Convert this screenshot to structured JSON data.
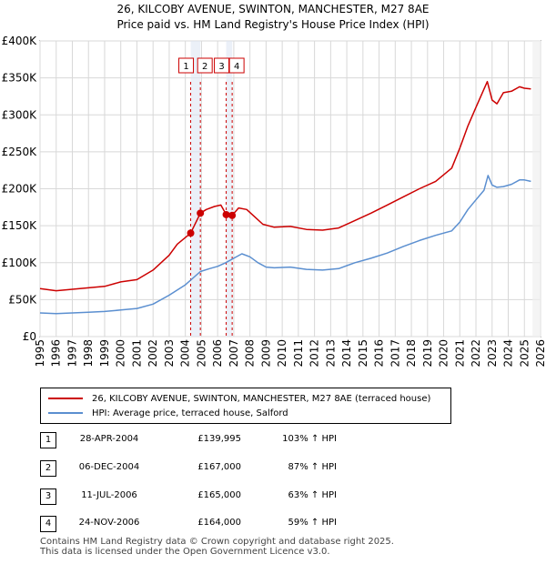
{
  "title_line1": "26, KILCOBY AVENUE, SWINTON, MANCHESTER, M27 8AE",
  "title_line2": "Price paid vs. HM Land Registry's House Price Index (HPI)",
  "chart_data": {
    "type": "line",
    "ylim": [
      0,
      400000
    ],
    "xlim": [
      1995,
      2026
    ],
    "y_ticks": [
      {
        "value": 0,
        "label": "£0"
      },
      {
        "value": 50000,
        "label": "£50K"
      },
      {
        "value": 100000,
        "label": "£100K"
      },
      {
        "value": 150000,
        "label": "£150K"
      },
      {
        "value": 200000,
        "label": "£200K"
      },
      {
        "value": 250000,
        "label": "£250K"
      },
      {
        "value": 300000,
        "label": "£300K"
      },
      {
        "value": 350000,
        "label": "£350K"
      },
      {
        "value": 400000,
        "label": "£400K"
      }
    ],
    "x_ticks": [
      "1995",
      "1996",
      "1997",
      "1998",
      "1999",
      "2000",
      "2001",
      "2002",
      "2003",
      "2004",
      "2005",
      "2006",
      "2007",
      "2008",
      "2009",
      "2010",
      "2011",
      "2012",
      "2013",
      "2014",
      "2015",
      "2016",
      "2017",
      "2018",
      "2019",
      "2020",
      "2021",
      "2022",
      "2023",
      "2024",
      "2025",
      "2026"
    ],
    "series": [
      {
        "name": "26, KILCOBY AVENUE, SWINTON, MANCHESTER, M27 8AE (terraced house)",
        "color": "#cc0000",
        "points": [
          [
            1995.0,
            65000
          ],
          [
            1996.0,
            62000
          ],
          [
            1997.0,
            64000
          ],
          [
            1998.0,
            66000
          ],
          [
            1999.0,
            68000
          ],
          [
            2000.0,
            74000
          ],
          [
            2001.0,
            77000
          ],
          [
            2002.0,
            90000
          ],
          [
            2003.0,
            110000
          ],
          [
            2003.5,
            125000
          ],
          [
            2004.33,
            139995
          ],
          [
            2004.93,
            167000
          ],
          [
            2005.3,
            172000
          ],
          [
            2005.8,
            176000
          ],
          [
            2006.2,
            178000
          ],
          [
            2006.53,
            165000
          ],
          [
            2006.9,
            164000
          ],
          [
            2007.3,
            174000
          ],
          [
            2007.8,
            172000
          ],
          [
            2008.3,
            162000
          ],
          [
            2008.8,
            152000
          ],
          [
            2009.5,
            148000
          ],
          [
            2010.5,
            149000
          ],
          [
            2011.5,
            145000
          ],
          [
            2012.5,
            144000
          ],
          [
            2013.5,
            147000
          ],
          [
            2014.5,
            157000
          ],
          [
            2015.5,
            167000
          ],
          [
            2016.5,
            178000
          ],
          [
            2017.5,
            189000
          ],
          [
            2018.5,
            200000
          ],
          [
            2019.5,
            210000
          ],
          [
            2020.5,
            228000
          ],
          [
            2021.0,
            255000
          ],
          [
            2021.5,
            285000
          ],
          [
            2022.0,
            310000
          ],
          [
            2022.4,
            330000
          ],
          [
            2022.7,
            345000
          ],
          [
            2023.0,
            320000
          ],
          [
            2023.3,
            315000
          ],
          [
            2023.7,
            330000
          ],
          [
            2024.2,
            332000
          ],
          [
            2024.7,
            338000
          ],
          [
            2025.0,
            336000
          ],
          [
            2025.4,
            335000
          ]
        ]
      },
      {
        "name": "HPI: Average price, terraced house, Salford",
        "color": "#5b8fd0",
        "points": [
          [
            1995.0,
            32000
          ],
          [
            1996.0,
            31000
          ],
          [
            1997.0,
            32000
          ],
          [
            1998.0,
            33000
          ],
          [
            1999.0,
            34000
          ],
          [
            2000.0,
            36000
          ],
          [
            2001.0,
            38000
          ],
          [
            2002.0,
            44000
          ],
          [
            2003.0,
            56000
          ],
          [
            2004.0,
            70000
          ],
          [
            2004.93,
            88000
          ],
          [
            2005.5,
            92000
          ],
          [
            2006.0,
            95000
          ],
          [
            2006.5,
            100000
          ],
          [
            2007.0,
            106000
          ],
          [
            2007.5,
            112000
          ],
          [
            2008.0,
            108000
          ],
          [
            2008.5,
            100000
          ],
          [
            2009.0,
            94000
          ],
          [
            2009.5,
            93000
          ],
          [
            2010.5,
            94000
          ],
          [
            2011.5,
            91000
          ],
          [
            2012.5,
            90000
          ],
          [
            2013.5,
            92000
          ],
          [
            2014.5,
            100000
          ],
          [
            2015.5,
            106000
          ],
          [
            2016.5,
            113000
          ],
          [
            2017.5,
            122000
          ],
          [
            2018.5,
            130000
          ],
          [
            2019.5,
            137000
          ],
          [
            2020.5,
            143000
          ],
          [
            2021.0,
            155000
          ],
          [
            2021.5,
            172000
          ],
          [
            2022.0,
            185000
          ],
          [
            2022.5,
            198000
          ],
          [
            2022.75,
            218000
          ],
          [
            2023.0,
            205000
          ],
          [
            2023.3,
            202000
          ],
          [
            2023.7,
            203000
          ],
          [
            2024.2,
            206000
          ],
          [
            2024.7,
            212000
          ],
          [
            2025.0,
            212000
          ],
          [
            2025.4,
            210000
          ]
        ]
      }
    ],
    "sales": [
      {
        "id": "1",
        "x": 2004.33,
        "value": 139995
      },
      {
        "id": "2",
        "x": 2004.93,
        "value": 167000
      },
      {
        "id": "3",
        "x": 2006.53,
        "value": 165000
      },
      {
        "id": "4",
        "x": 2006.9,
        "value": 164000
      }
    ],
    "data_end": 2025.5
  },
  "legend": {
    "entries": [
      {
        "label": "26, KILCOBY AVENUE, SWINTON, MANCHESTER, M27 8AE (terraced house)",
        "color": "#cc0000"
      },
      {
        "label": "HPI: Average price, terraced house, Salford",
        "color": "#5b8fd0"
      }
    ]
  },
  "transactions": [
    {
      "id": "1",
      "date": "28-APR-2004",
      "price": "£139,995",
      "hpi": "103% ↑ HPI"
    },
    {
      "id": "2",
      "date": "06-DEC-2004",
      "price": "£167,000",
      "hpi": "87% ↑ HPI"
    },
    {
      "id": "3",
      "date": "11-JUL-2006",
      "price": "£165,000",
      "hpi": "63% ↑ HPI"
    },
    {
      "id": "4",
      "date": "24-NOV-2006",
      "price": "£164,000",
      "hpi": "59% ↑ HPI"
    }
  ],
  "footer": {
    "line1": "Contains HM Land Registry data © Crown copyright and database right 2025.",
    "line2": "This data is licensed under the Open Government Licence v3.0."
  }
}
